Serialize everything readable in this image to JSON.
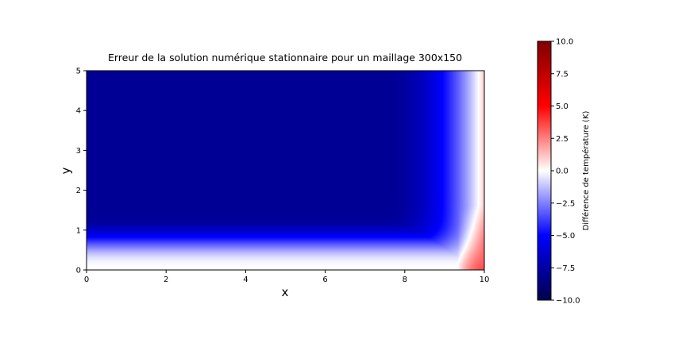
{
  "chart_data": {
    "type": "heatmap",
    "title": "Erreur de la solution numérique stationnaire pour un maillage 300x150",
    "xlabel": "x",
    "ylabel": "y",
    "xlim": [
      0,
      10
    ],
    "ylim": [
      0,
      5
    ],
    "x_ticks": [
      0,
      2,
      4,
      6,
      8,
      10
    ],
    "y_ticks": [
      0,
      1,
      2,
      3,
      4,
      5
    ],
    "colormap": "seismic",
    "colorbar": {
      "label": "Différence de température (K)",
      "range": [
        -10.0,
        10.0
      ],
      "ticks": [
        "10.0",
        "7.5",
        "5.0",
        "2.5",
        "0.0",
        "−2.5",
        "−5.0",
        "−7.5",
        "−10.0"
      ],
      "tick_values": [
        10.0,
        7.5,
        5.0,
        2.5,
        0.0,
        -2.5,
        -5.0,
        -7.5,
        -10.0
      ]
    },
    "field_summary": [
      {
        "x": 2,
        "y": 0.0,
        "value": 0.0
      },
      {
        "x": 2,
        "y": 0.5,
        "value": -3.5
      },
      {
        "x": 2,
        "y": 1.0,
        "value": -5.8
      },
      {
        "x": 2,
        "y": 1.5,
        "value": -7.5
      },
      {
        "x": 2,
        "y": 2.0,
        "value": -9.0
      },
      {
        "x": 2,
        "y": 3.5,
        "value": -10.0
      },
      {
        "x": 8,
        "y": 1.0,
        "value": -4.5
      },
      {
        "x": 8,
        "y": 2.5,
        "value": -7.5
      },
      {
        "x": 9.5,
        "y": 2.5,
        "value": -3.0
      },
      {
        "x": 9.5,
        "y": 4.5,
        "value": -5.0
      },
      {
        "x": 10,
        "y": 0.5,
        "value": 3.0
      },
      {
        "x": 10,
        "y": 1.5,
        "value": 0.5
      }
    ],
    "grid": false
  }
}
